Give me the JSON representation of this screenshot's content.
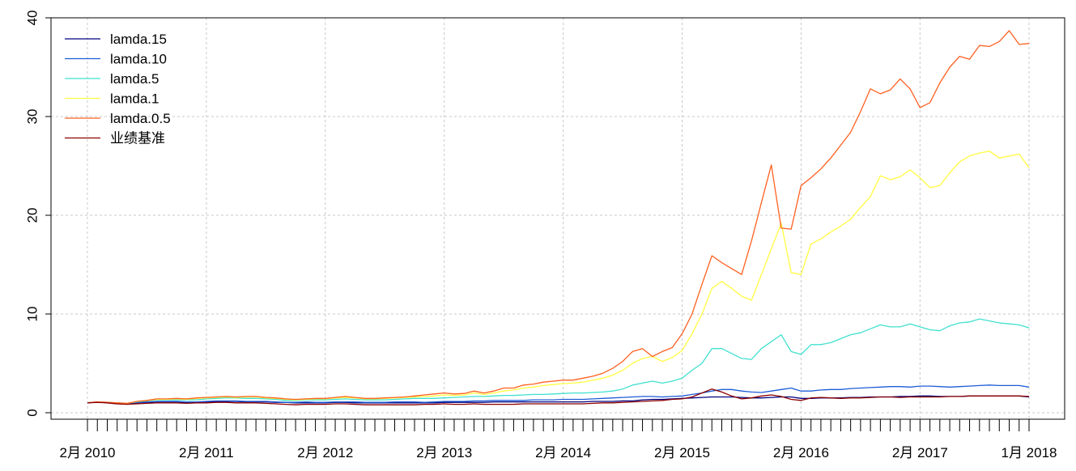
{
  "chart_data": {
    "type": "line",
    "title": "",
    "xlabel": "",
    "ylabel": "",
    "ylim": [
      0,
      40
    ],
    "yticks": [
      0,
      10,
      20,
      30,
      40
    ],
    "x_tick_labels": [
      {
        "label": "2月 2010",
        "index": 0
      },
      {
        "label": "2月 2011",
        "index": 12
      },
      {
        "label": "2月 2012",
        "index": 24
      },
      {
        "label": "2月 2013",
        "index": 36
      },
      {
        "label": "2月 2014",
        "index": 48
      },
      {
        "label": "2月 2015",
        "index": 60
      },
      {
        "label": "2月 2016",
        "index": 72
      },
      {
        "label": "2月 2017",
        "index": 84
      },
      {
        "label": "1月 2018",
        "index": 95
      }
    ],
    "n_points": 96,
    "grid": true,
    "legend_position": "top-left",
    "series": [
      {
        "name": "lamda.15",
        "color": "#000080",
        "values": [
          1.0,
          1.1,
          1.0,
          0.9,
          0.9,
          1.0,
          1.05,
          1.1,
          1.1,
          1.1,
          1.05,
          1.05,
          1.1,
          1.1,
          1.15,
          1.15,
          1.1,
          1.1,
          1.1,
          1.05,
          1.05,
          1.0,
          1.0,
          1.0,
          1.0,
          1.05,
          1.05,
          1.0,
          1.0,
          1.0,
          1.0,
          1.0,
          1.0,
          1.0,
          1.0,
          1.0,
          1.05,
          1.05,
          1.05,
          1.05,
          1.05,
          1.1,
          1.1,
          1.1,
          1.1,
          1.1,
          1.1,
          1.1,
          1.1,
          1.1,
          1.1,
          1.15,
          1.15,
          1.15,
          1.2,
          1.2,
          1.3,
          1.35,
          1.35,
          1.4,
          1.45,
          1.5,
          1.55,
          1.6,
          1.6,
          1.6,
          1.55,
          1.5,
          1.5,
          1.55,
          1.6,
          1.6,
          1.45,
          1.45,
          1.5,
          1.5,
          1.5,
          1.55,
          1.55,
          1.6,
          1.6,
          1.6,
          1.65,
          1.65,
          1.7,
          1.7,
          1.65,
          1.65,
          1.65,
          1.7,
          1.7,
          1.7,
          1.7,
          1.7,
          1.7,
          1.6
        ]
      },
      {
        "name": "lamda.10",
        "color": "#1e5cd6",
        "values": [
          1.0,
          1.1,
          1.05,
          0.95,
          0.95,
          1.05,
          1.1,
          1.15,
          1.15,
          1.15,
          1.1,
          1.1,
          1.15,
          1.2,
          1.2,
          1.2,
          1.15,
          1.15,
          1.15,
          1.1,
          1.05,
          1.05,
          1.1,
          1.05,
          1.05,
          1.1,
          1.1,
          1.1,
          1.05,
          1.05,
          1.05,
          1.1,
          1.1,
          1.1,
          1.05,
          1.1,
          1.15,
          1.15,
          1.15,
          1.2,
          1.2,
          1.25,
          1.25,
          1.25,
          1.25,
          1.3,
          1.3,
          1.3,
          1.35,
          1.35,
          1.35,
          1.4,
          1.45,
          1.5,
          1.55,
          1.6,
          1.65,
          1.65,
          1.6,
          1.65,
          1.7,
          1.85,
          2.0,
          2.2,
          2.35,
          2.35,
          2.2,
          2.1,
          2.05,
          2.2,
          2.35,
          2.5,
          2.2,
          2.2,
          2.3,
          2.35,
          2.35,
          2.45,
          2.5,
          2.55,
          2.6,
          2.65,
          2.65,
          2.6,
          2.7,
          2.7,
          2.65,
          2.6,
          2.65,
          2.7,
          2.75,
          2.8,
          2.75,
          2.75,
          2.75,
          2.6
        ]
      },
      {
        "name": "lamda.5",
        "color": "#40e0d0",
        "values": [
          1.0,
          1.1,
          1.05,
          1.0,
          0.95,
          1.1,
          1.2,
          1.3,
          1.3,
          1.3,
          1.3,
          1.3,
          1.4,
          1.45,
          1.5,
          1.5,
          1.45,
          1.45,
          1.4,
          1.35,
          1.25,
          1.25,
          1.3,
          1.3,
          1.3,
          1.35,
          1.4,
          1.35,
          1.3,
          1.3,
          1.3,
          1.35,
          1.4,
          1.45,
          1.45,
          1.45,
          1.5,
          1.55,
          1.6,
          1.65,
          1.65,
          1.7,
          1.75,
          1.75,
          1.8,
          1.85,
          1.85,
          1.9,
          1.95,
          2.0,
          2.0,
          2.05,
          2.1,
          2.2,
          2.4,
          2.8,
          3.0,
          3.2,
          3.0,
          3.2,
          3.5,
          4.3,
          5.0,
          6.5,
          6.5,
          6.0,
          5.5,
          5.4,
          6.5,
          7.2,
          7.9,
          6.2,
          5.9,
          6.9,
          6.9,
          7.1,
          7.5,
          7.9,
          8.1,
          8.5,
          8.9,
          8.7,
          8.7,
          9.0,
          8.7,
          8.4,
          8.3,
          8.8,
          9.1,
          9.2,
          9.5,
          9.3,
          9.1,
          9.0,
          8.9,
          8.6
        ]
      },
      {
        "name": "lamda.1",
        "color": "#ffff40",
        "values": [
          1.0,
          1.1,
          1.05,
          1.0,
          0.95,
          1.15,
          1.25,
          1.35,
          1.35,
          1.4,
          1.35,
          1.45,
          1.5,
          1.55,
          1.6,
          1.55,
          1.6,
          1.6,
          1.5,
          1.45,
          1.35,
          1.3,
          1.35,
          1.4,
          1.4,
          1.5,
          1.55,
          1.5,
          1.4,
          1.4,
          1.45,
          1.5,
          1.55,
          1.6,
          1.65,
          1.7,
          1.8,
          1.75,
          1.8,
          2.0,
          1.85,
          2.0,
          2.2,
          2.3,
          2.5,
          2.6,
          2.75,
          2.85,
          2.95,
          3.0,
          3.1,
          3.3,
          3.5,
          3.8,
          4.3,
          5.0,
          5.5,
          5.7,
          5.2,
          5.6,
          6.3,
          8.0,
          10.0,
          12.6,
          13.3,
          12.6,
          11.8,
          11.4,
          14.0,
          16.6,
          19.2,
          14.2,
          14.0,
          17.1,
          17.6,
          18.3,
          18.9,
          19.6,
          20.8,
          21.9,
          24.0,
          23.6,
          23.9,
          24.6,
          23.8,
          22.8,
          23.0,
          24.3,
          25.4,
          26.0,
          26.3,
          26.5,
          25.8,
          26.0,
          26.2,
          24.8
        ]
      },
      {
        "name": "lamda.0.5",
        "color": "#ff6020",
        "values": [
          1.0,
          1.1,
          1.05,
          1.0,
          0.95,
          1.15,
          1.25,
          1.4,
          1.4,
          1.45,
          1.4,
          1.5,
          1.55,
          1.6,
          1.65,
          1.6,
          1.65,
          1.65,
          1.55,
          1.5,
          1.4,
          1.35,
          1.4,
          1.45,
          1.45,
          1.55,
          1.65,
          1.55,
          1.45,
          1.45,
          1.5,
          1.55,
          1.6,
          1.7,
          1.8,
          1.9,
          2.0,
          1.9,
          1.95,
          2.2,
          2.0,
          2.2,
          2.5,
          2.5,
          2.8,
          2.9,
          3.1,
          3.2,
          3.3,
          3.3,
          3.5,
          3.7,
          4.0,
          4.5,
          5.2,
          6.2,
          6.5,
          5.7,
          6.2,
          6.6,
          8.0,
          10.0,
          13.0,
          15.9,
          15.2,
          14.6,
          14.0,
          17.4,
          21.3,
          25.1,
          18.7,
          18.6,
          23.0,
          23.8,
          24.7,
          25.8,
          27.1,
          28.4,
          30.5,
          32.8,
          32.3,
          32.7,
          33.8,
          32.8,
          30.9,
          31.4,
          33.4,
          35.0,
          36.1,
          35.8,
          37.2,
          37.1,
          37.6,
          38.7,
          37.3,
          37.4
        ]
      },
      {
        "name": "业绩基准",
        "color": "#8b0000",
        "values": [
          1.0,
          1.05,
          1.0,
          0.9,
          0.85,
          0.9,
          0.95,
          1.0,
          1.0,
          1.0,
          0.95,
          1.0,
          1.0,
          1.05,
          1.05,
          1.0,
          1.0,
          1.0,
          0.95,
          0.9,
          0.85,
          0.8,
          0.85,
          0.85,
          0.85,
          0.9,
          0.9,
          0.85,
          0.8,
          0.8,
          0.8,
          0.8,
          0.8,
          0.8,
          0.85,
          0.85,
          0.9,
          0.85,
          0.85,
          0.9,
          0.85,
          0.85,
          0.85,
          0.85,
          0.9,
          0.9,
          0.9,
          0.9,
          0.9,
          0.9,
          0.9,
          0.95,
          1.0,
          1.0,
          1.05,
          1.1,
          1.15,
          1.2,
          1.25,
          1.35,
          1.4,
          1.6,
          2.0,
          2.4,
          2.1,
          1.7,
          1.4,
          1.5,
          1.7,
          1.8,
          1.65,
          1.35,
          1.25,
          1.5,
          1.55,
          1.5,
          1.45,
          1.5,
          1.5,
          1.55,
          1.6,
          1.6,
          1.55,
          1.6,
          1.6,
          1.6,
          1.6,
          1.65,
          1.65,
          1.7,
          1.7,
          1.7,
          1.7,
          1.7,
          1.7,
          1.65
        ]
      }
    ]
  }
}
